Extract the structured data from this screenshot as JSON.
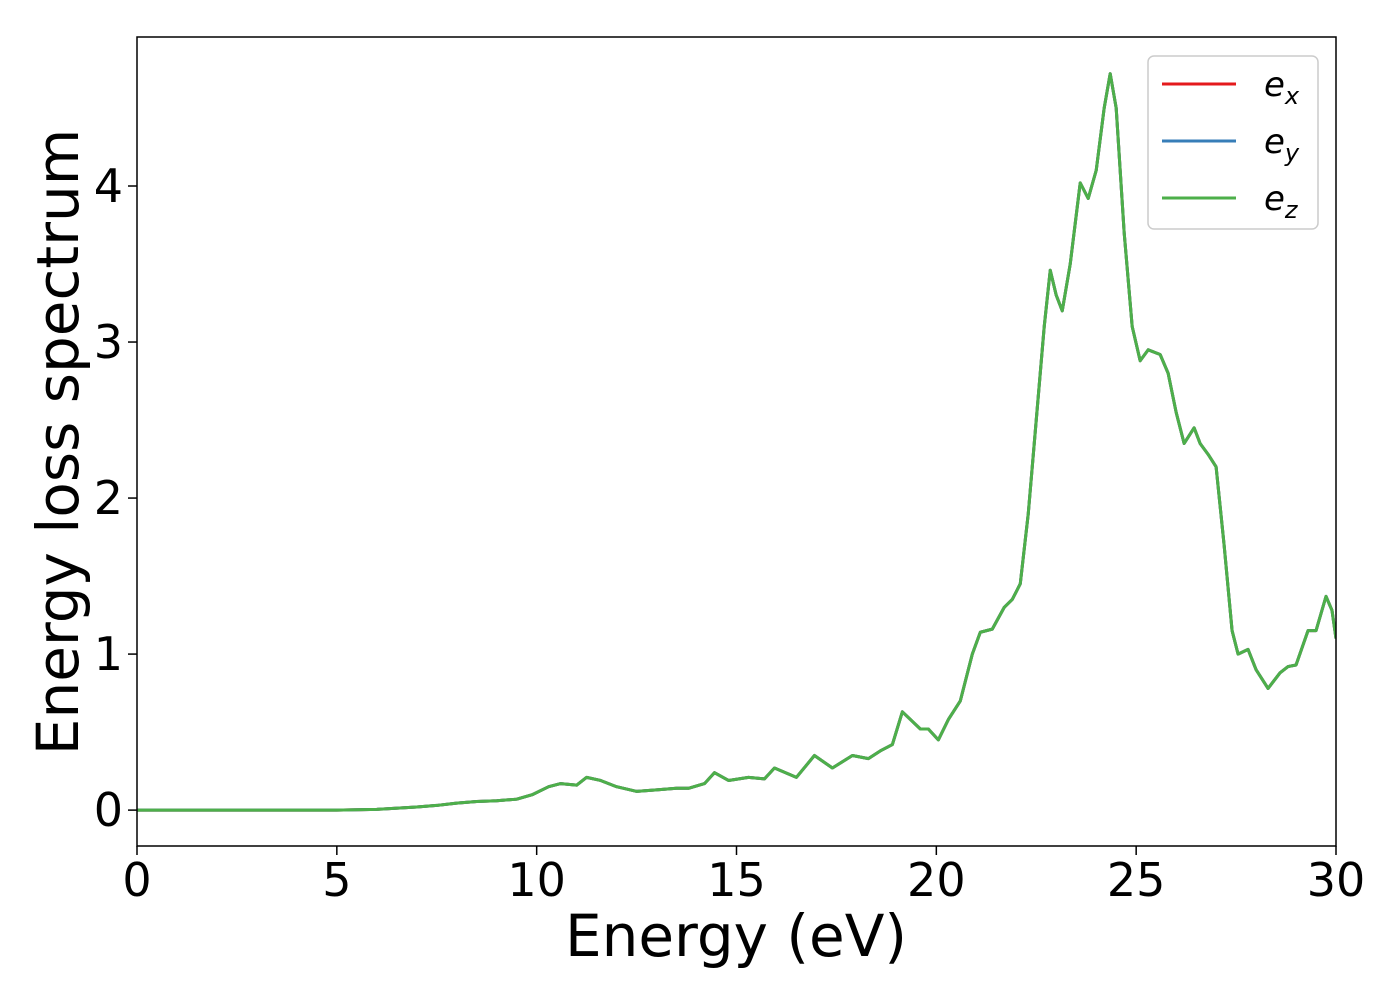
{
  "chart_data": {
    "type": "line",
    "xlabel": "Energy (eV)",
    "ylabel": "Energy loss spectrum",
    "x": [
      0,
      5,
      6,
      7,
      7.5,
      8,
      8.5,
      9,
      9.5,
      9.9,
      10.3,
      10.6,
      11,
      11.25,
      11.6,
      12,
      12.5,
      13,
      13.5,
      13.8,
      14.2,
      14.45,
      14.8,
      15.3,
      15.7,
      15.95,
      16.5,
      16.95,
      17.4,
      17.9,
      18.3,
      18.6,
      18.9,
      19.15,
      19.6,
      19.8,
      20.05,
      20.3,
      20.6,
      20.9,
      21.1,
      21.4,
      21.7,
      21.9,
      22.1,
      22.3,
      22.5,
      22.7,
      22.85,
      23.0,
      23.15,
      23.35,
      23.6,
      23.8,
      24.0,
      24.2,
      24.35,
      24.5,
      24.7,
      24.9,
      25.1,
      25.3,
      25.6,
      25.8,
      26.0,
      26.2,
      26.45,
      26.6,
      26.8,
      27.0,
      27.2,
      27.4,
      27.55,
      27.8,
      28.0,
      28.3,
      28.6,
      28.8,
      29.0,
      29.3,
      29.5,
      29.75,
      29.9,
      30
    ],
    "series": [
      {
        "name": "e",
        "subscript": "x",
        "color": "#e41a1c",
        "values": [
          0,
          0,
          0.005,
          0.02,
          0.03,
          0.045,
          0.055,
          0.06,
          0.07,
          0.1,
          0.15,
          0.17,
          0.16,
          0.21,
          0.19,
          0.15,
          0.12,
          0.13,
          0.14,
          0.14,
          0.17,
          0.24,
          0.19,
          0.21,
          0.2,
          0.27,
          0.21,
          0.35,
          0.27,
          0.35,
          0.33,
          0.38,
          0.42,
          0.63,
          0.52,
          0.52,
          0.45,
          0.58,
          0.7,
          1.0,
          1.14,
          1.16,
          1.3,
          1.35,
          1.45,
          1.9,
          2.5,
          3.1,
          3.46,
          3.3,
          3.2,
          3.5,
          4.02,
          3.92,
          4.1,
          4.5,
          4.72,
          4.5,
          3.7,
          3.1,
          2.88,
          2.95,
          2.92,
          2.8,
          2.55,
          2.35,
          2.45,
          2.35,
          2.28,
          2.2,
          1.7,
          1.15,
          1.0,
          1.03,
          0.9,
          0.78,
          0.88,
          0.92,
          0.93,
          1.15,
          1.15,
          1.37,
          1.28,
          1.1
        ]
      },
      {
        "name": "e",
        "subscript": "y",
        "color": "#377eb8",
        "values": [
          0,
          0,
          0.005,
          0.02,
          0.03,
          0.045,
          0.055,
          0.06,
          0.07,
          0.1,
          0.15,
          0.17,
          0.16,
          0.21,
          0.19,
          0.15,
          0.12,
          0.13,
          0.14,
          0.14,
          0.17,
          0.24,
          0.19,
          0.21,
          0.2,
          0.27,
          0.21,
          0.35,
          0.27,
          0.35,
          0.33,
          0.38,
          0.42,
          0.63,
          0.52,
          0.52,
          0.45,
          0.58,
          0.7,
          1.0,
          1.14,
          1.16,
          1.3,
          1.35,
          1.45,
          1.9,
          2.5,
          3.1,
          3.46,
          3.3,
          3.2,
          3.5,
          4.02,
          3.92,
          4.1,
          4.5,
          4.72,
          4.5,
          3.7,
          3.1,
          2.88,
          2.95,
          2.92,
          2.8,
          2.55,
          2.35,
          2.45,
          2.35,
          2.28,
          2.2,
          1.7,
          1.15,
          1.0,
          1.03,
          0.9,
          0.78,
          0.88,
          0.92,
          0.93,
          1.15,
          1.15,
          1.37,
          1.28,
          1.1
        ]
      },
      {
        "name": "e",
        "subscript": "z",
        "color": "#4daf4a",
        "values": [
          0,
          0,
          0.005,
          0.02,
          0.03,
          0.045,
          0.055,
          0.06,
          0.07,
          0.1,
          0.15,
          0.17,
          0.16,
          0.21,
          0.19,
          0.15,
          0.12,
          0.13,
          0.14,
          0.14,
          0.17,
          0.24,
          0.19,
          0.21,
          0.2,
          0.27,
          0.21,
          0.35,
          0.27,
          0.35,
          0.33,
          0.38,
          0.42,
          0.63,
          0.52,
          0.52,
          0.45,
          0.58,
          0.7,
          1.0,
          1.14,
          1.16,
          1.3,
          1.35,
          1.45,
          1.9,
          2.5,
          3.1,
          3.46,
          3.3,
          3.2,
          3.5,
          4.02,
          3.92,
          4.1,
          4.5,
          4.72,
          4.5,
          3.7,
          3.1,
          2.88,
          2.95,
          2.92,
          2.8,
          2.55,
          2.35,
          2.45,
          2.35,
          2.28,
          2.2,
          1.7,
          1.15,
          1.0,
          1.03,
          0.9,
          0.78,
          0.88,
          0.92,
          0.93,
          1.15,
          1.15,
          1.37,
          1.28,
          1.1
        ]
      }
    ],
    "xlim": [
      0,
      30
    ],
    "xticks": [
      0,
      5,
      10,
      15,
      20,
      25,
      30
    ],
    "ylim": [
      -0.23,
      4.955
    ],
    "yticks": [
      0,
      1,
      2,
      3,
      4
    ],
    "grid": false,
    "legend": "upper right"
  }
}
